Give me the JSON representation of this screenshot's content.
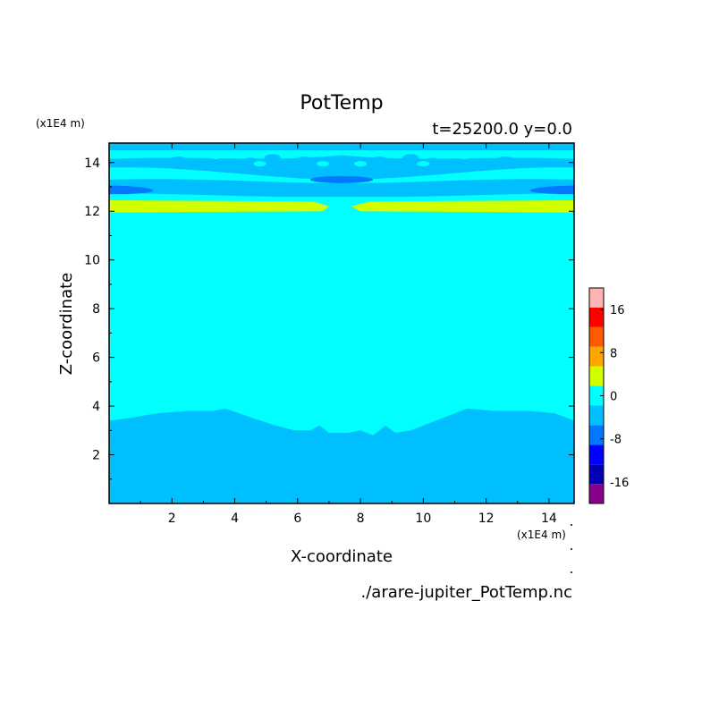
{
  "chart_data": {
    "type": "heatmap",
    "title": "PotTemp",
    "subtitle": "t=25200.0 y=0.0",
    "xlabel": "X-coordinate",
    "ylabel": "Z-coordinate",
    "x_unit": "(x1E4 m)",
    "y_unit": "(x1E4 m)",
    "source_file": "./arare-jupiter_PotTemp.nc",
    "xlim": [
      0,
      14.8
    ],
    "ylim": [
      0,
      14.8
    ],
    "x_ticks": [
      2,
      4,
      6,
      8,
      10,
      12,
      14
    ],
    "y_ticks": [
      2,
      4,
      6,
      8,
      10,
      12,
      14
    ],
    "colorbar": {
      "levels": [
        -20,
        -16,
        -12,
        -8,
        -4,
        0,
        4,
        8,
        12,
        16,
        20
      ],
      "colors": [
        "#8b008b",
        "#0000b4",
        "#0000ff",
        "#0078ff",
        "#00bfff",
        "#00ffff",
        "#d2ff00",
        "#ffa500",
        "#ff5a00",
        "#ff0000",
        "#ffb4b4"
      ],
      "tick_labels": [
        "-16",
        "-8",
        "0",
        "8",
        "16"
      ],
      "tick_values": [
        -16,
        -8,
        0,
        8,
        16
      ]
    },
    "regions": {
      "lower_layer_value_range": [
        -4,
        0
      ],
      "middle_layer_value_range": [
        0,
        4
      ],
      "warm_band_value_range": [
        4,
        8
      ],
      "upper_cold_band_value_range": [
        -8,
        -4
      ],
      "upper_layer_value_range": [
        -4,
        0
      ],
      "lower_boundary_z_profile": {
        "x": [
          0,
          0.6,
          1.5,
          2.5,
          3.3,
          3.7,
          4.6,
          5.3,
          5.9,
          6.4,
          6.7,
          7.0,
          7.6,
          8.0,
          8.4,
          8.8,
          9.1,
          9.6,
          10.2,
          11.0,
          11.4,
          12.3,
          13.4,
          14.2,
          14.8
        ],
        "z": [
          3.4,
          3.5,
          3.7,
          3.8,
          3.8,
          3.9,
          3.5,
          3.2,
          3.0,
          3.0,
          3.2,
          2.9,
          2.9,
          3.0,
          2.8,
          3.2,
          2.9,
          3.0,
          3.3,
          3.7,
          3.9,
          3.8,
          3.8,
          3.7,
          3.4
        ]
      },
      "warm_band_z_range": [
        12.0,
        12.45
      ],
      "cold_band_z_range": [
        12.7,
        13.05
      ]
    }
  }
}
